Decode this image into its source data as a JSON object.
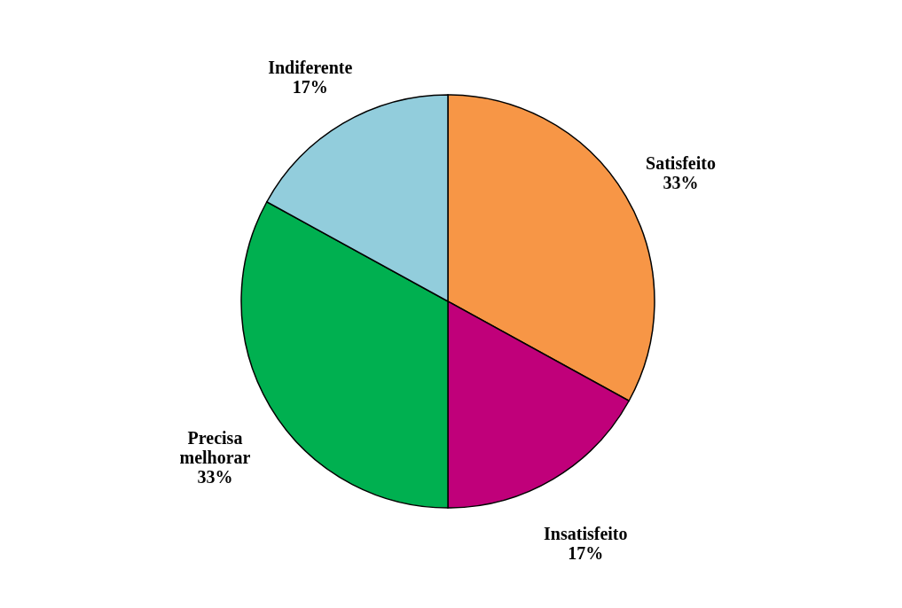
{
  "chart_data": {
    "type": "pie",
    "categories": [
      "Satisfeito",
      "Insatisfeito",
      "Precisa melhorar",
      "Indiferente"
    ],
    "values": [
      33,
      17,
      33,
      17
    ],
    "colors": [
      "#f79646",
      "#c0007a",
      "#00b050",
      "#92cddc"
    ],
    "value_labels": [
      "33%",
      "17%",
      "33%",
      "17%"
    ],
    "legend": false
  }
}
